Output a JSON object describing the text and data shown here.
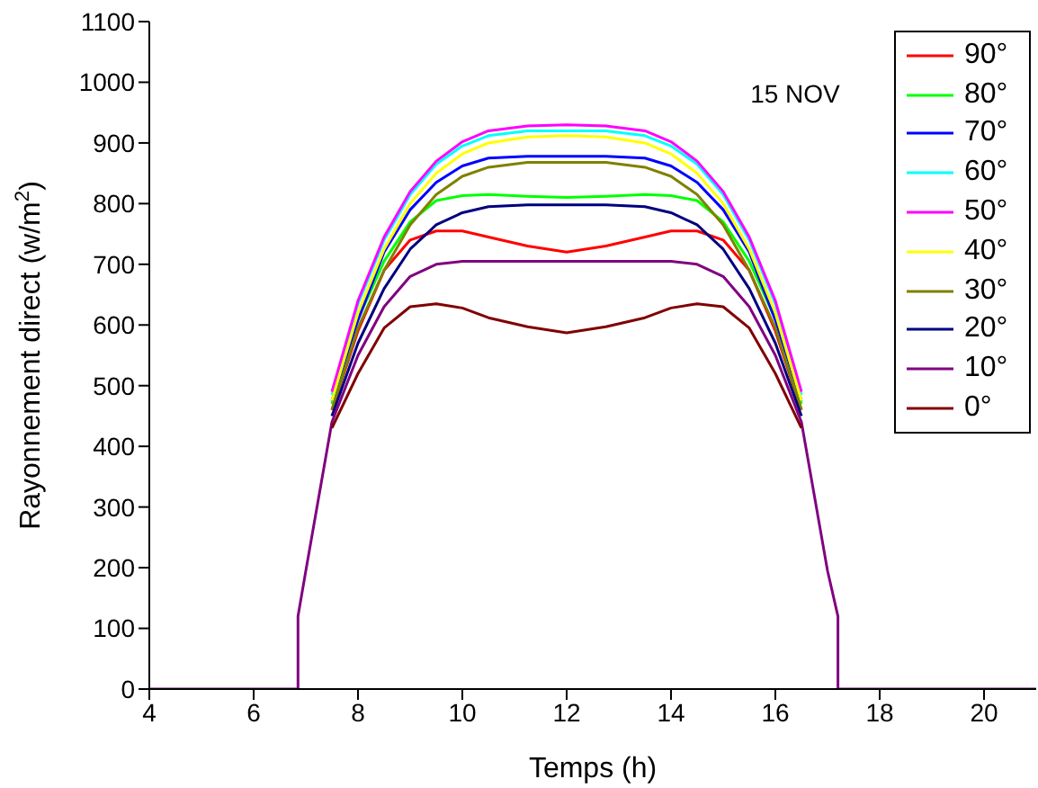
{
  "chart_data": {
    "type": "line",
    "xlabel": "Temps (h)",
    "ylabel": "Rayonnement direct  (w/m$^{2}$)",
    "annotations": [
      "15 NOV"
    ],
    "x": [
      4,
      6.85,
      6.85,
      7,
      7.5,
      8,
      8.5,
      9,
      9.5,
      10,
      10.5,
      11.25,
      12,
      12.75,
      13.5,
      14,
      14.5,
      15,
      15.5,
      16,
      16.5,
      17,
      17.2,
      17.2,
      21
    ],
    "series": [
      {
        "name": "90°",
        "color": "#ff0000",
        "values": [
          null,
          null,
          null,
          null,
          460,
          590,
          690,
          740,
          755,
          755,
          745,
          730,
          720,
          730,
          745,
          755,
          755,
          740,
          690,
          590,
          460,
          null,
          null,
          null,
          null
        ]
      },
      {
        "name": "80°",
        "color": "#00ff00",
        "values": [
          null,
          null,
          null,
          null,
          470,
          610,
          705,
          770,
          805,
          813,
          815,
          812,
          810,
          812,
          815,
          813,
          805,
          770,
          705,
          610,
          470,
          null,
          null,
          null,
          null
        ]
      },
      {
        "name": "70°",
        "color": "#0000ff",
        "values": [
          null,
          null,
          null,
          null,
          475,
          608,
          720,
          790,
          835,
          862,
          875,
          878,
          878,
          878,
          875,
          862,
          835,
          790,
          720,
          608,
          475,
          null,
          null,
          null,
          null
        ]
      },
      {
        "name": "60°",
        "color": "#00ffff",
        "values": [
          null,
          null,
          null,
          null,
          485,
          635,
          740,
          815,
          865,
          895,
          912,
          920,
          920,
          920,
          912,
          895,
          865,
          815,
          740,
          635,
          485,
          null,
          null,
          null,
          null
        ]
      },
      {
        "name": "50°",
        "color": "#ff00ff",
        "values": [
          null,
          null,
          null,
          null,
          490,
          640,
          745,
          820,
          870,
          902,
          920,
          928,
          930,
          928,
          920,
          902,
          870,
          820,
          745,
          640,
          490,
          null,
          null,
          null,
          null
        ]
      },
      {
        "name": "40°",
        "color": "#ffff00",
        "values": [
          null,
          null,
          null,
          null,
          475,
          620,
          725,
          800,
          850,
          882,
          900,
          910,
          912,
          910,
          900,
          882,
          850,
          800,
          725,
          620,
          475,
          null,
          null,
          null,
          null
        ]
      },
      {
        "name": "30°",
        "color": "#808000",
        "values": [
          null,
          null,
          null,
          null,
          460,
          595,
          690,
          765,
          815,
          845,
          860,
          868,
          868,
          868,
          860,
          845,
          815,
          765,
          690,
          595,
          460,
          null,
          null,
          null,
          null
        ]
      },
      {
        "name": "20°",
        "color": "#000080",
        "values": [
          null,
          null,
          null,
          null,
          450,
          570,
          660,
          725,
          765,
          785,
          795,
          798,
          798,
          798,
          795,
          785,
          765,
          725,
          660,
          570,
          450,
          null,
          null,
          null,
          null
        ]
      },
      {
        "name": "10°",
        "color": "#800080",
        "values": [
          0,
          0,
          120,
          195,
          440,
          550,
          630,
          680,
          700,
          705,
          705,
          705,
          705,
          705,
          705,
          705,
          700,
          680,
          630,
          550,
          440,
          195,
          120,
          0,
          0
        ]
      },
      {
        "name": "0°",
        "color": "#800000",
        "values": [
          null,
          null,
          null,
          null,
          430,
          520,
          595,
          630,
          635,
          628,
          612,
          597,
          587,
          597,
          612,
          628,
          635,
          630,
          595,
          520,
          430,
          null,
          null,
          null,
          null
        ]
      }
    ],
    "xlim": [
      4,
      21
    ],
    "xticks": [
      4,
      6,
      8,
      10,
      12,
      14,
      16,
      18,
      20
    ],
    "ylim": [
      0,
      1100
    ],
    "yticks": [
      0,
      100,
      200,
      300,
      400,
      500,
      600,
      700,
      800,
      900,
      1000,
      1100
    ],
    "grid": false,
    "legend": "top right"
  }
}
